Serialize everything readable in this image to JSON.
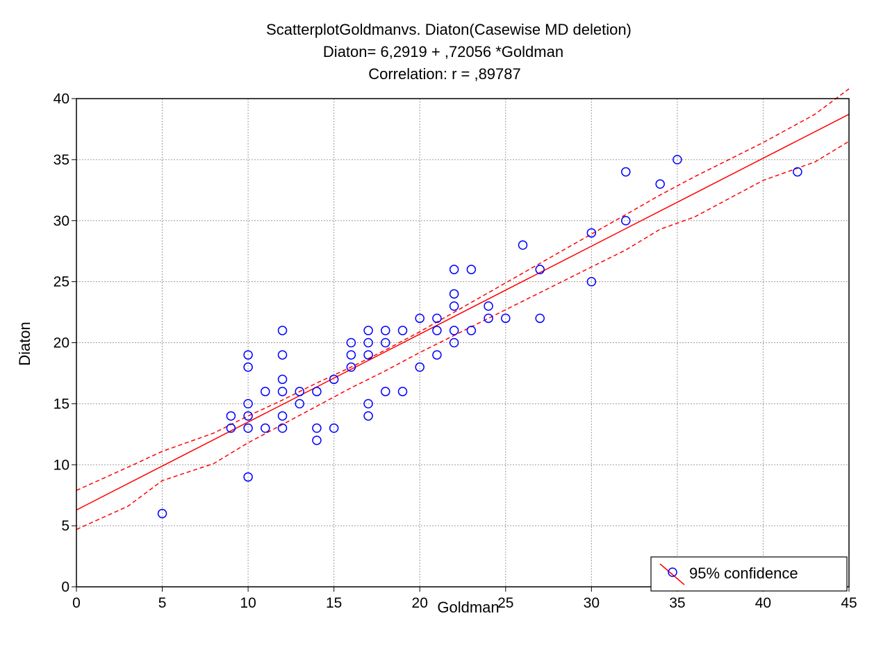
{
  "chart_data": {
    "type": "scatter",
    "title": "ScatterplotGoldmanvs. Diaton(Casewise MD deletion)",
    "subtitle_lines": [
      "Diaton= 6,2919 + ,72056 *Goldman",
      "Correlation: r = ,89787"
    ],
    "xlabel": "Goldman",
    "ylabel": "Diaton",
    "xlim": [
      0,
      45
    ],
    "ylim": [
      0,
      40
    ],
    "x_ticks": [
      0,
      5,
      10,
      15,
      20,
      25,
      30,
      35,
      40,
      45
    ],
    "y_ticks": [
      0,
      5,
      10,
      15,
      20,
      25,
      30,
      35,
      40
    ],
    "grid": true,
    "legend": {
      "position": "bottom-right",
      "label": "95% confidence"
    },
    "regression": {
      "intercept": 6.2919,
      "slope": 0.72056
    },
    "confidence_band": {
      "x": [
        0,
        3,
        5,
        8,
        10,
        12,
        14,
        16,
        18,
        20,
        22,
        24,
        26,
        28,
        30,
        32,
        34,
        36,
        38,
        40,
        43,
        45
      ],
      "upper": [
        7.9,
        9.8,
        11.1,
        12.6,
        14.0,
        15.3,
        16.7,
        18.0,
        19.4,
        20.9,
        22.5,
        24.1,
        25.7,
        27.3,
        28.9,
        30.5,
        32.1,
        33.6,
        35.0,
        36.4,
        38.7,
        40.8
      ],
      "lower": [
        4.7,
        6.6,
        8.7,
        10.1,
        11.8,
        13.3,
        14.8,
        16.3,
        17.7,
        19.2,
        20.6,
        22.0,
        23.4,
        24.8,
        26.2,
        27.6,
        29.3,
        30.3,
        31.8,
        33.3,
        34.8,
        36.5
      ]
    },
    "series": [
      {
        "color": "#0000ff",
        "points": [
          [
            5,
            6
          ],
          [
            9,
            14
          ],
          [
            9,
            13
          ],
          [
            10,
            19
          ],
          [
            10,
            18
          ],
          [
            10,
            15
          ],
          [
            10,
            14
          ],
          [
            10,
            13
          ],
          [
            10,
            9
          ],
          [
            11,
            16
          ],
          [
            11,
            13
          ],
          [
            12,
            21
          ],
          [
            12,
            19
          ],
          [
            12,
            17
          ],
          [
            12,
            16
          ],
          [
            12,
            14
          ],
          [
            12,
            13
          ],
          [
            13,
            16
          ],
          [
            13,
            15
          ],
          [
            14,
            16
          ],
          [
            14,
            13
          ],
          [
            14,
            12
          ],
          [
            15,
            17
          ],
          [
            15,
            13
          ],
          [
            16,
            20
          ],
          [
            16,
            19
          ],
          [
            16,
            18
          ],
          [
            17,
            21
          ],
          [
            17,
            20
          ],
          [
            17,
            19
          ],
          [
            17,
            15
          ],
          [
            17,
            14
          ],
          [
            18,
            21
          ],
          [
            18,
            20
          ],
          [
            18,
            16
          ],
          [
            19,
            21
          ],
          [
            19,
            16
          ],
          [
            20,
            22
          ],
          [
            20,
            18
          ],
          [
            21,
            22
          ],
          [
            21,
            21
          ],
          [
            21,
            19
          ],
          [
            22,
            26
          ],
          [
            22,
            24
          ],
          [
            22,
            23
          ],
          [
            22,
            21
          ],
          [
            22,
            20
          ],
          [
            23,
            26
          ],
          [
            23,
            21
          ],
          [
            24,
            23
          ],
          [
            24,
            22
          ],
          [
            25,
            22
          ],
          [
            26,
            28
          ],
          [
            27,
            26
          ],
          [
            27,
            22
          ],
          [
            30,
            29
          ],
          [
            30,
            25
          ],
          [
            32,
            34
          ],
          [
            32,
            30
          ],
          [
            34,
            33
          ],
          [
            35,
            35
          ],
          [
            42,
            34
          ]
        ]
      }
    ],
    "colors": {
      "fit": "#ff0000",
      "confidence": "#ff0000",
      "points": "#0000ff",
      "grid": "#9a9a9a"
    }
  }
}
